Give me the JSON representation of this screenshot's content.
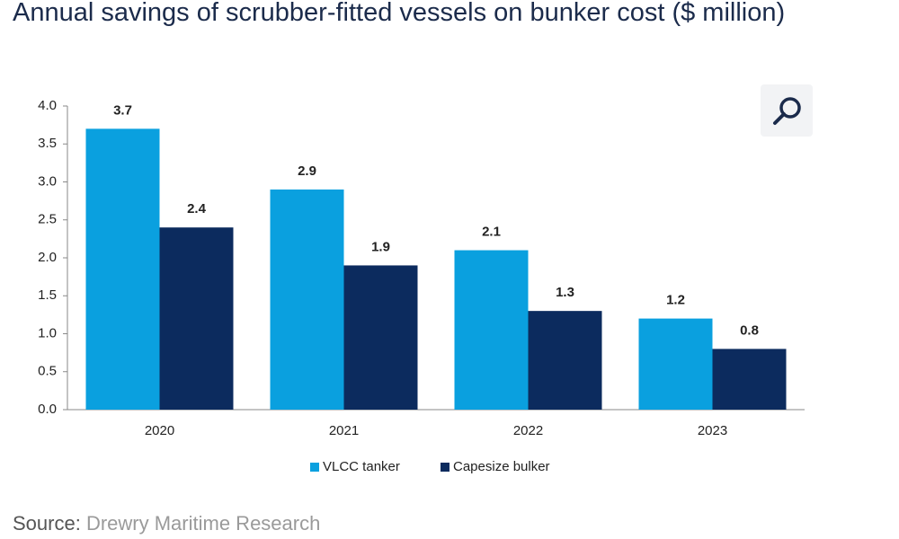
{
  "chart_data": {
    "type": "bar",
    "title": "Annual savings of scrubber-fitted vessels on bunker cost ($ million)",
    "categories": [
      "2020",
      "2021",
      "2022",
      "2023"
    ],
    "series": [
      {
        "name": "VLCC tanker",
        "color": "#0aa0df",
        "values": [
          3.7,
          2.9,
          2.1,
          1.2
        ]
      },
      {
        "name": "Capesize bulker",
        "color": "#0c2b5e",
        "values": [
          2.4,
          1.9,
          1.3,
          0.8
        ]
      }
    ],
    "ylim": [
      0,
      4
    ],
    "yticks": [
      {
        "value": 0,
        "label": "0.0"
      },
      0.5,
      {
        "value": 1,
        "label": "1.0"
      },
      1.5,
      {
        "value": 2,
        "label": "2.0"
      },
      2.5,
      {
        "value": 3,
        "label": "3.0"
      },
      3.5,
      {
        "value": 4,
        "label": "4.0"
      }
    ],
    "grid": false,
    "legend": "bottom",
    "source_label": "Source:",
    "source": "Drewry Maritime Research"
  }
}
